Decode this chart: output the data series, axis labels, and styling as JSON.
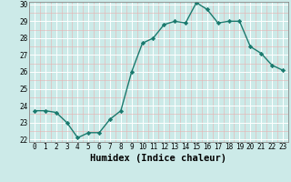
{
  "x": [
    0,
    1,
    2,
    3,
    4,
    5,
    6,
    7,
    8,
    9,
    10,
    11,
    12,
    13,
    14,
    15,
    16,
    17,
    18,
    19,
    20,
    21,
    22,
    23
  ],
  "y": [
    23.7,
    23.7,
    23.6,
    23.0,
    22.1,
    22.4,
    22.4,
    23.2,
    23.7,
    26.0,
    27.7,
    28.0,
    28.8,
    29.0,
    28.9,
    30.1,
    29.7,
    28.9,
    29.0,
    29.0,
    27.5,
    27.1,
    26.4,
    26.1
  ],
  "line_color": "#1a7a6e",
  "marker": "D",
  "marker_size": 2.2,
  "bg_color": "#cceae8",
  "grid_color": "#ffffff",
  "xlabel": "Humidex (Indice chaleur)",
  "ylim": [
    22,
    30
  ],
  "xlim": [
    -0.5,
    23.5
  ],
  "yticks": [
    22,
    23,
    24,
    25,
    26,
    27,
    28,
    29,
    30
  ],
  "xticks": [
    0,
    1,
    2,
    3,
    4,
    5,
    6,
    7,
    8,
    9,
    10,
    11,
    12,
    13,
    14,
    15,
    16,
    17,
    18,
    19,
    20,
    21,
    22,
    23
  ],
  "tick_fontsize": 5.5,
  "xlabel_fontsize": 7.5,
  "linewidth": 1.0
}
